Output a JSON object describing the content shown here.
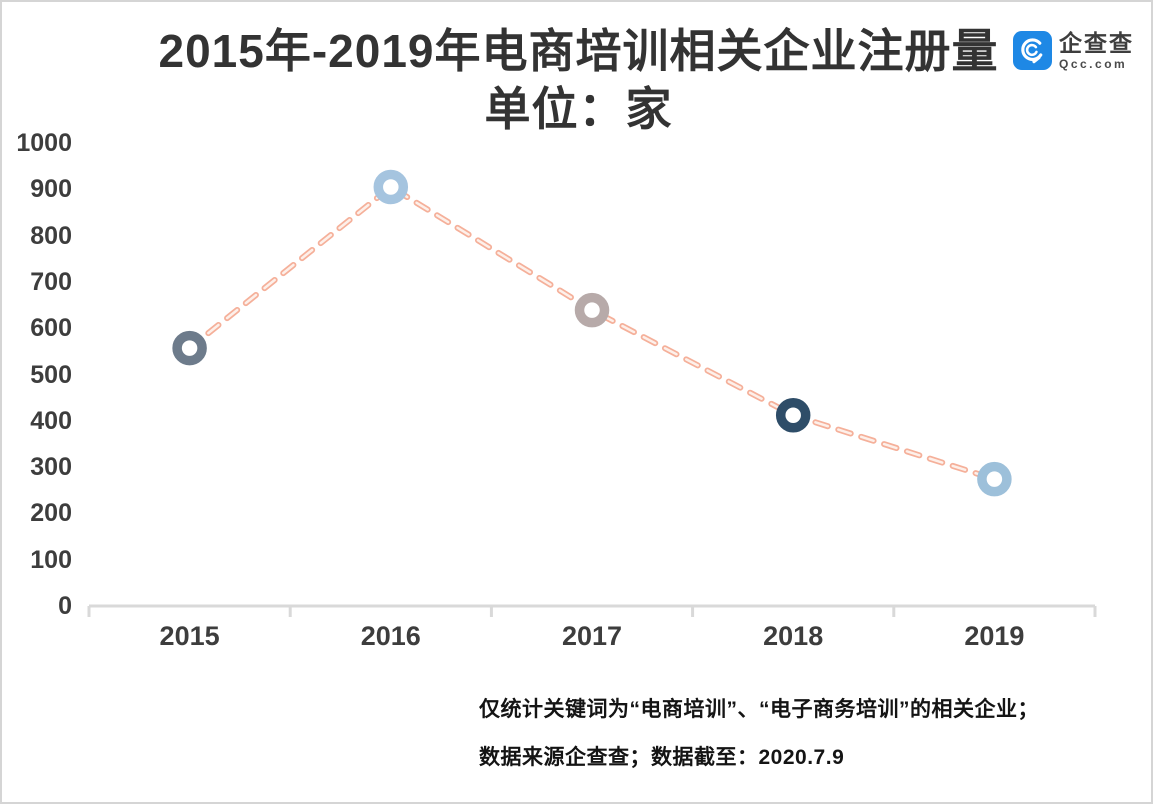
{
  "title": {
    "line1": "2015年-2019年电商培训相关企业注册量",
    "line2": "单位：家"
  },
  "logo": {
    "name": "企查查",
    "domain": "Qcc.com",
    "icon_color": "#1e88e5"
  },
  "chart_data": {
    "type": "line",
    "title": "2015年-2019年电商培训相关企业注册量",
    "unit_label": "单位：家",
    "categories": [
      "2015",
      "2016",
      "2017",
      "2018",
      "2019"
    ],
    "values": [
      557,
      905,
      639,
      412,
      274
    ],
    "ylim": [
      0,
      1000
    ],
    "ytick_step": 100,
    "grid": false,
    "legend": "none",
    "line_style": "dashed",
    "line_color": "#f5b09a",
    "line_core_color": "#fdf0ea",
    "marker_style": "open-circle",
    "marker_colors": [
      "#6d7b8b",
      "#a5c4df",
      "#b7aaa9",
      "#2e4d68",
      "#9dc0da"
    ],
    "axis_color": "#d9d9d9",
    "label_color": "#3d3d3d"
  },
  "footnote": {
    "line1": "仅统计关键词为“电商培训”、“电子商务培训”的相关企业；",
    "line2": "数据来源企查查；数据截至：2020.7.9"
  }
}
